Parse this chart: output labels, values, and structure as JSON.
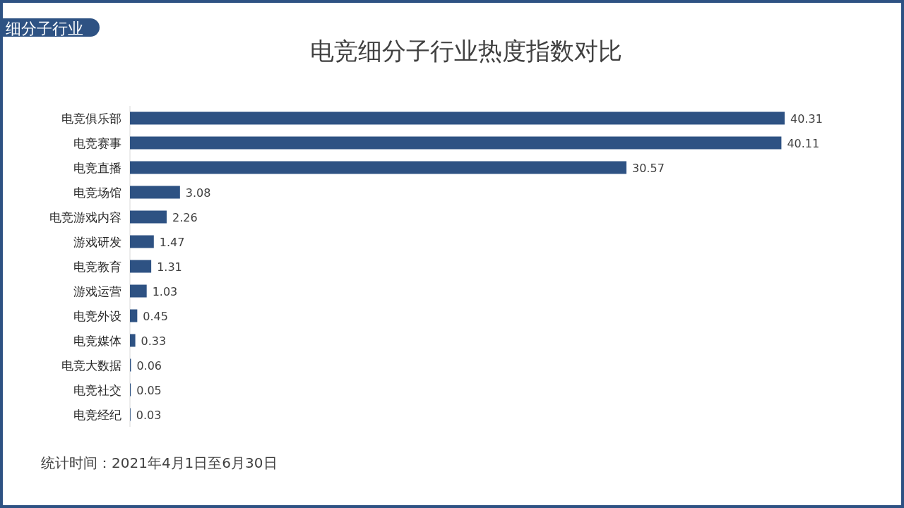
{
  "chart_data": {
    "type": "bar",
    "orientation": "horizontal",
    "title": "电竞细分子行业热度指数对比",
    "categories": [
      "电竞俱乐部",
      "电竞赛事",
      "电竞直播",
      "电竞场馆",
      "电竞游戏内容",
      "游戏研发",
      "电竞教育",
      "游戏运营",
      "电竞外设",
      "电竞媒体",
      "电竞大数据",
      "电竞社交",
      "电竞经纪"
    ],
    "values": [
      40.31,
      40.11,
      30.57,
      3.08,
      2.26,
      1.47,
      1.31,
      1.03,
      0.45,
      0.33,
      0.06,
      0.05,
      0.03
    ],
    "color": "#2e5283",
    "data_labels": true,
    "annotations": [
      "细分子行业",
      "统计时间：2021年4月1日至6月30日"
    ]
  }
}
